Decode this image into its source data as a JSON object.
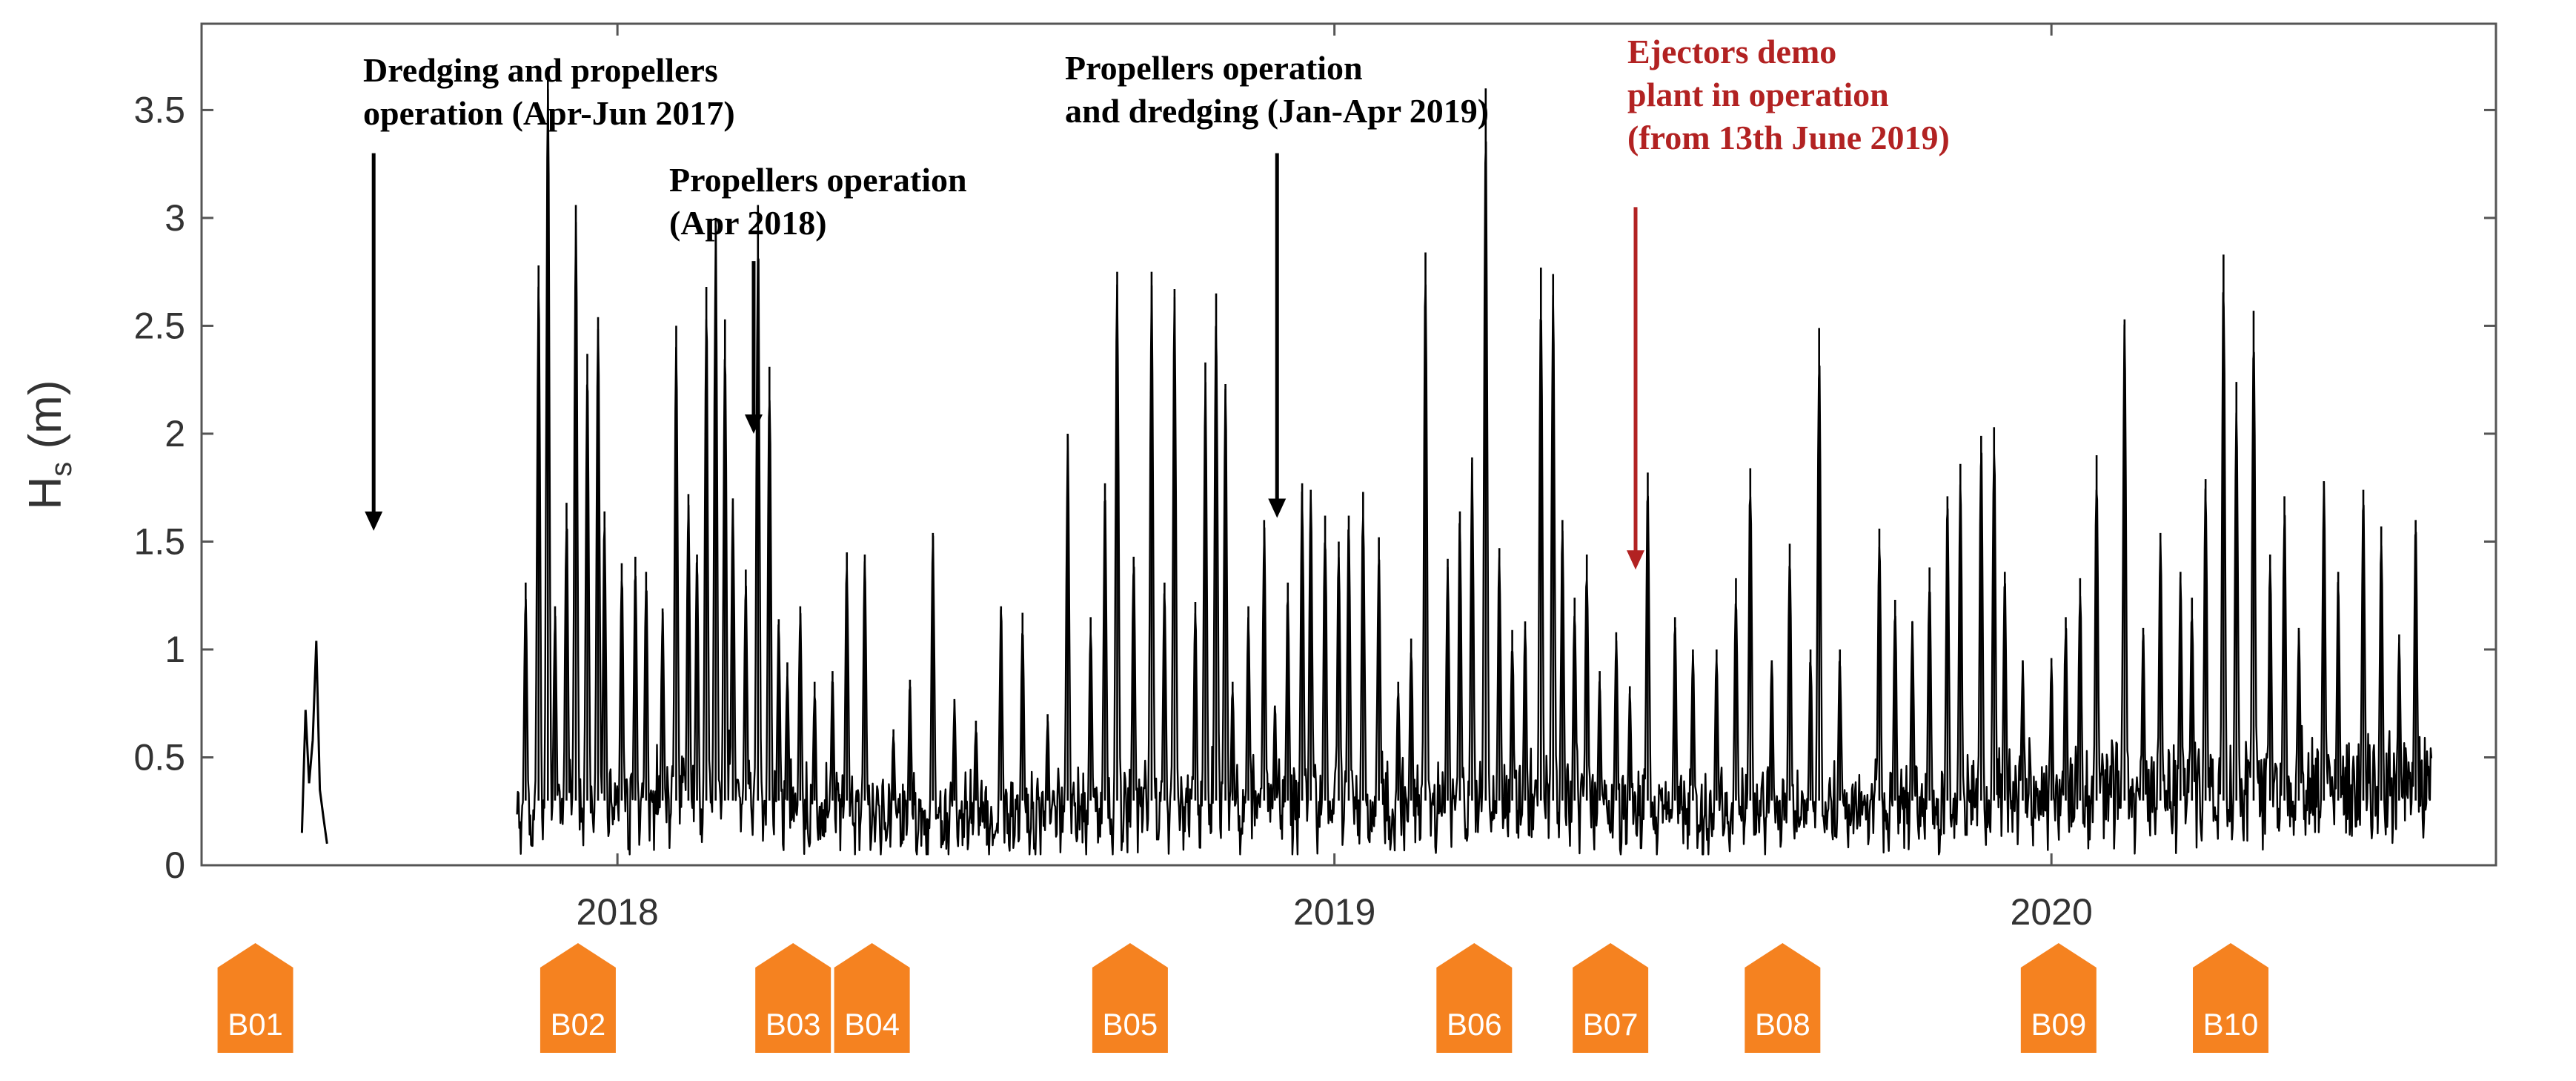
{
  "chart_data": {
    "type": "line",
    "title": "",
    "xlabel": "",
    "ylabel": "H",
    "ylabel_subscript": "s",
    "ylabel_units": " (m)",
    "xlim": [
      2017.42,
      2020.62
    ],
    "ylim": [
      0,
      3.9
    ],
    "yticks": [
      0,
      0.5,
      1,
      1.5,
      2,
      2.5,
      3,
      3.5
    ],
    "ytick_labels": [
      "0",
      "0.5",
      "1",
      "1.5",
      "2",
      "2.5",
      "3",
      "3.5"
    ],
    "xticks": [
      2018.0,
      2019.0,
      2020.0
    ],
    "xtick_labels": [
      "2018",
      "2019",
      "2020"
    ],
    "grid": false,
    "series": [
      {
        "name": "Hs",
        "color": "#000000",
        "segments": [
          {
            "x": [
              2017.56,
              2017.565,
              2017.57,
              2017.575,
              2017.58,
              2017.585,
              2017.59,
              2017.595
            ],
            "y": [
              0.15,
              0.72,
              0.38,
              0.58,
              1.04,
              0.35,
              0.22,
              0.1
            ]
          }
        ],
        "baseline": [
          [
            2017.86,
            0.22
          ],
          [
            2017.95,
            0.28
          ],
          [
            2018.05,
            0.3
          ],
          [
            2018.15,
            0.35
          ],
          [
            2018.25,
            0.28
          ],
          [
            2018.35,
            0.26
          ],
          [
            2018.45,
            0.22
          ],
          [
            2018.55,
            0.24
          ],
          [
            2018.65,
            0.26
          ],
          [
            2018.75,
            0.27
          ],
          [
            2018.85,
            0.32
          ],
          [
            2018.95,
            0.3
          ],
          [
            2019.05,
            0.28
          ],
          [
            2019.15,
            0.3
          ],
          [
            2019.25,
            0.32
          ],
          [
            2019.35,
            0.3
          ],
          [
            2019.45,
            0.28
          ],
          [
            2019.55,
            0.27
          ],
          [
            2019.65,
            0.27
          ],
          [
            2019.75,
            0.29
          ],
          [
            2019.85,
            0.3
          ],
          [
            2019.95,
            0.32
          ],
          [
            2020.05,
            0.34
          ],
          [
            2020.15,
            0.36
          ],
          [
            2020.25,
            0.38
          ],
          [
            2020.35,
            0.4
          ],
          [
            2020.45,
            0.4
          ],
          [
            2020.53,
            0.38
          ]
        ],
        "peaks": [
          [
            2017.872,
            1.31
          ],
          [
            2017.89,
            2.78
          ],
          [
            2017.903,
            3.7
          ],
          [
            2017.913,
            1.2
          ],
          [
            2017.929,
            1.68
          ],
          [
            2017.942,
            3.06
          ],
          [
            2017.958,
            2.37
          ],
          [
            2017.973,
            2.54
          ],
          [
            2017.982,
            1.64
          ],
          [
            2018.006,
            1.4
          ],
          [
            2018.025,
            1.43
          ],
          [
            2018.04,
            1.36
          ],
          [
            2018.063,
            1.19
          ],
          [
            2018.082,
            2.5
          ],
          [
            2018.099,
            1.72
          ],
          [
            2018.111,
            1.44
          ],
          [
            2018.124,
            2.68
          ],
          [
            2018.137,
            3.0
          ],
          [
            2018.15,
            2.53
          ],
          [
            2018.161,
            1.7
          ],
          [
            2018.179,
            1.37
          ],
          [
            2018.196,
            3.06
          ],
          [
            2018.212,
            2.31
          ],
          [
            2018.225,
            1.14
          ],
          [
            2018.237,
            0.94
          ],
          [
            2018.255,
            1.2
          ],
          [
            2018.275,
            0.85
          ],
          [
            2018.3,
            0.9
          ],
          [
            2018.32,
            1.45
          ],
          [
            2018.345,
            1.44
          ],
          [
            2018.385,
            0.63
          ],
          [
            2018.408,
            0.86
          ],
          [
            2018.44,
            1.54
          ],
          [
            2018.47,
            0.77
          ],
          [
            2018.5,
            0.67
          ],
          [
            2018.535,
            1.2
          ],
          [
            2018.565,
            1.17
          ],
          [
            2018.6,
            0.7
          ],
          [
            2018.628,
            2.0
          ],
          [
            2018.66,
            1.15
          ],
          [
            2018.68,
            1.77
          ],
          [
            2018.697,
            2.75
          ],
          [
            2018.72,
            1.43
          ],
          [
            2018.745,
            2.75
          ],
          [
            2018.763,
            1.31
          ],
          [
            2018.777,
            2.67
          ],
          [
            2018.806,
            1.22
          ],
          [
            2018.82,
            2.33
          ],
          [
            2018.835,
            2.65
          ],
          [
            2018.848,
            2.23
          ],
          [
            2018.858,
            0.85
          ],
          [
            2018.88,
            1.2
          ],
          [
            2018.902,
            1.6
          ],
          [
            2018.917,
            0.74
          ],
          [
            2018.935,
            1.31
          ],
          [
            2018.955,
            1.77
          ],
          [
            2018.967,
            1.74
          ],
          [
            2018.987,
            1.62
          ],
          [
            2019.006,
            1.5
          ],
          [
            2019.02,
            1.62
          ],
          [
            2019.04,
            1.73
          ],
          [
            2019.062,
            1.52
          ],
          [
            2019.089,
            0.85
          ],
          [
            2019.107,
            1.05
          ],
          [
            2019.127,
            2.84
          ],
          [
            2019.158,
            1.42
          ],
          [
            2019.175,
            1.64
          ],
          [
            2019.192,
            1.89
          ],
          [
            2019.211,
            3.6
          ],
          [
            2019.23,
            1.47
          ],
          [
            2019.248,
            1.09
          ],
          [
            2019.266,
            1.13
          ],
          [
            2019.288,
            2.77
          ],
          [
            2019.305,
            2.74
          ],
          [
            2019.318,
            1.6
          ],
          [
            2019.335,
            1.24
          ],
          [
            2019.352,
            1.44
          ],
          [
            2019.37,
            0.9
          ],
          [
            2019.393,
            1.08
          ],
          [
            2019.412,
            0.83
          ],
          [
            2019.437,
            1.82
          ],
          [
            2019.475,
            1.15
          ],
          [
            2019.5,
            1.0
          ],
          [
            2019.533,
            1.0
          ],
          [
            2019.56,
            1.33
          ],
          [
            2019.58,
            1.84
          ],
          [
            2019.61,
            0.95
          ],
          [
            2019.635,
            1.49
          ],
          [
            2019.664,
            1.0
          ],
          [
            2019.676,
            2.49
          ],
          [
            2019.705,
            1.0
          ],
          [
            2019.76,
            1.56
          ],
          [
            2019.782,
            1.23
          ],
          [
            2019.806,
            1.13
          ],
          [
            2019.83,
            1.38
          ],
          [
            2019.855,
            1.71
          ],
          [
            2019.873,
            1.86
          ],
          [
            2019.902,
            1.99
          ],
          [
            2019.92,
            2.03
          ],
          [
            2019.935,
            1.36
          ],
          [
            2019.96,
            0.95
          ],
          [
            2020.0,
            0.96
          ],
          [
            2020.02,
            1.15
          ],
          [
            2020.04,
            1.33
          ],
          [
            2020.063,
            1.9
          ],
          [
            2020.102,
            2.53
          ],
          [
            2020.128,
            1.1
          ],
          [
            2020.152,
            1.54
          ],
          [
            2020.18,
            1.36
          ],
          [
            2020.196,
            1.24
          ],
          [
            2020.215,
            1.79
          ],
          [
            2020.24,
            2.83
          ],
          [
            2020.258,
            2.24
          ],
          [
            2020.282,
            2.57
          ],
          [
            2020.305,
            1.44
          ],
          [
            2020.325,
            1.71
          ],
          [
            2020.345,
            1.1
          ],
          [
            2020.38,
            1.78
          ],
          [
            2020.4,
            1.36
          ],
          [
            2020.435,
            1.74
          ],
          [
            2020.46,
            1.57
          ],
          [
            2020.485,
            1.07
          ],
          [
            2020.508,
            1.6
          ]
        ]
      }
    ],
    "annotations": [
      {
        "lines": [
          "Dredging and propellers",
          "operation (Apr-Jun 2017)"
        ],
        "color": "#000000",
        "arrow_x": 2017.66,
        "arrow_y_from": 3.3,
        "arrow_y_to": 1.55
      },
      {
        "lines": [
          "Propellers operation",
          "(Apr 2018)"
        ],
        "color": "#000000",
        "arrow_x": 2018.19,
        "arrow_y_from": 2.8,
        "arrow_y_to": 2.0
      },
      {
        "lines": [
          "Propellers operation",
          "and dredging (Jan-Apr 2019)"
        ],
        "color": "#000000",
        "arrow_x": 2018.92,
        "arrow_y_from": 3.3,
        "arrow_y_to": 1.61
      },
      {
        "lines": [
          "Ejectors demo",
          "plant in operation",
          "(from 13th June 2019)"
        ],
        "color": "#b22222",
        "arrow_x": 2019.42,
        "arrow_y_from": 3.05,
        "arrow_y_to": 1.37
      }
    ],
    "markers": [
      {
        "label": "B01",
        "x": 2017.495
      },
      {
        "label": "B02",
        "x": 2017.945
      },
      {
        "label": "B03",
        "x": 2018.245
      },
      {
        "label": "B04",
        "x": 2018.355
      },
      {
        "label": "B05",
        "x": 2018.715
      },
      {
        "label": "B06",
        "x": 2019.195
      },
      {
        "label": "B07",
        "x": 2019.385
      },
      {
        "label": "B08",
        "x": 2019.625
      },
      {
        "label": "B09",
        "x": 2020.01
      },
      {
        "label": "B10",
        "x": 2020.25
      }
    ],
    "marker_color": "#f58220"
  }
}
